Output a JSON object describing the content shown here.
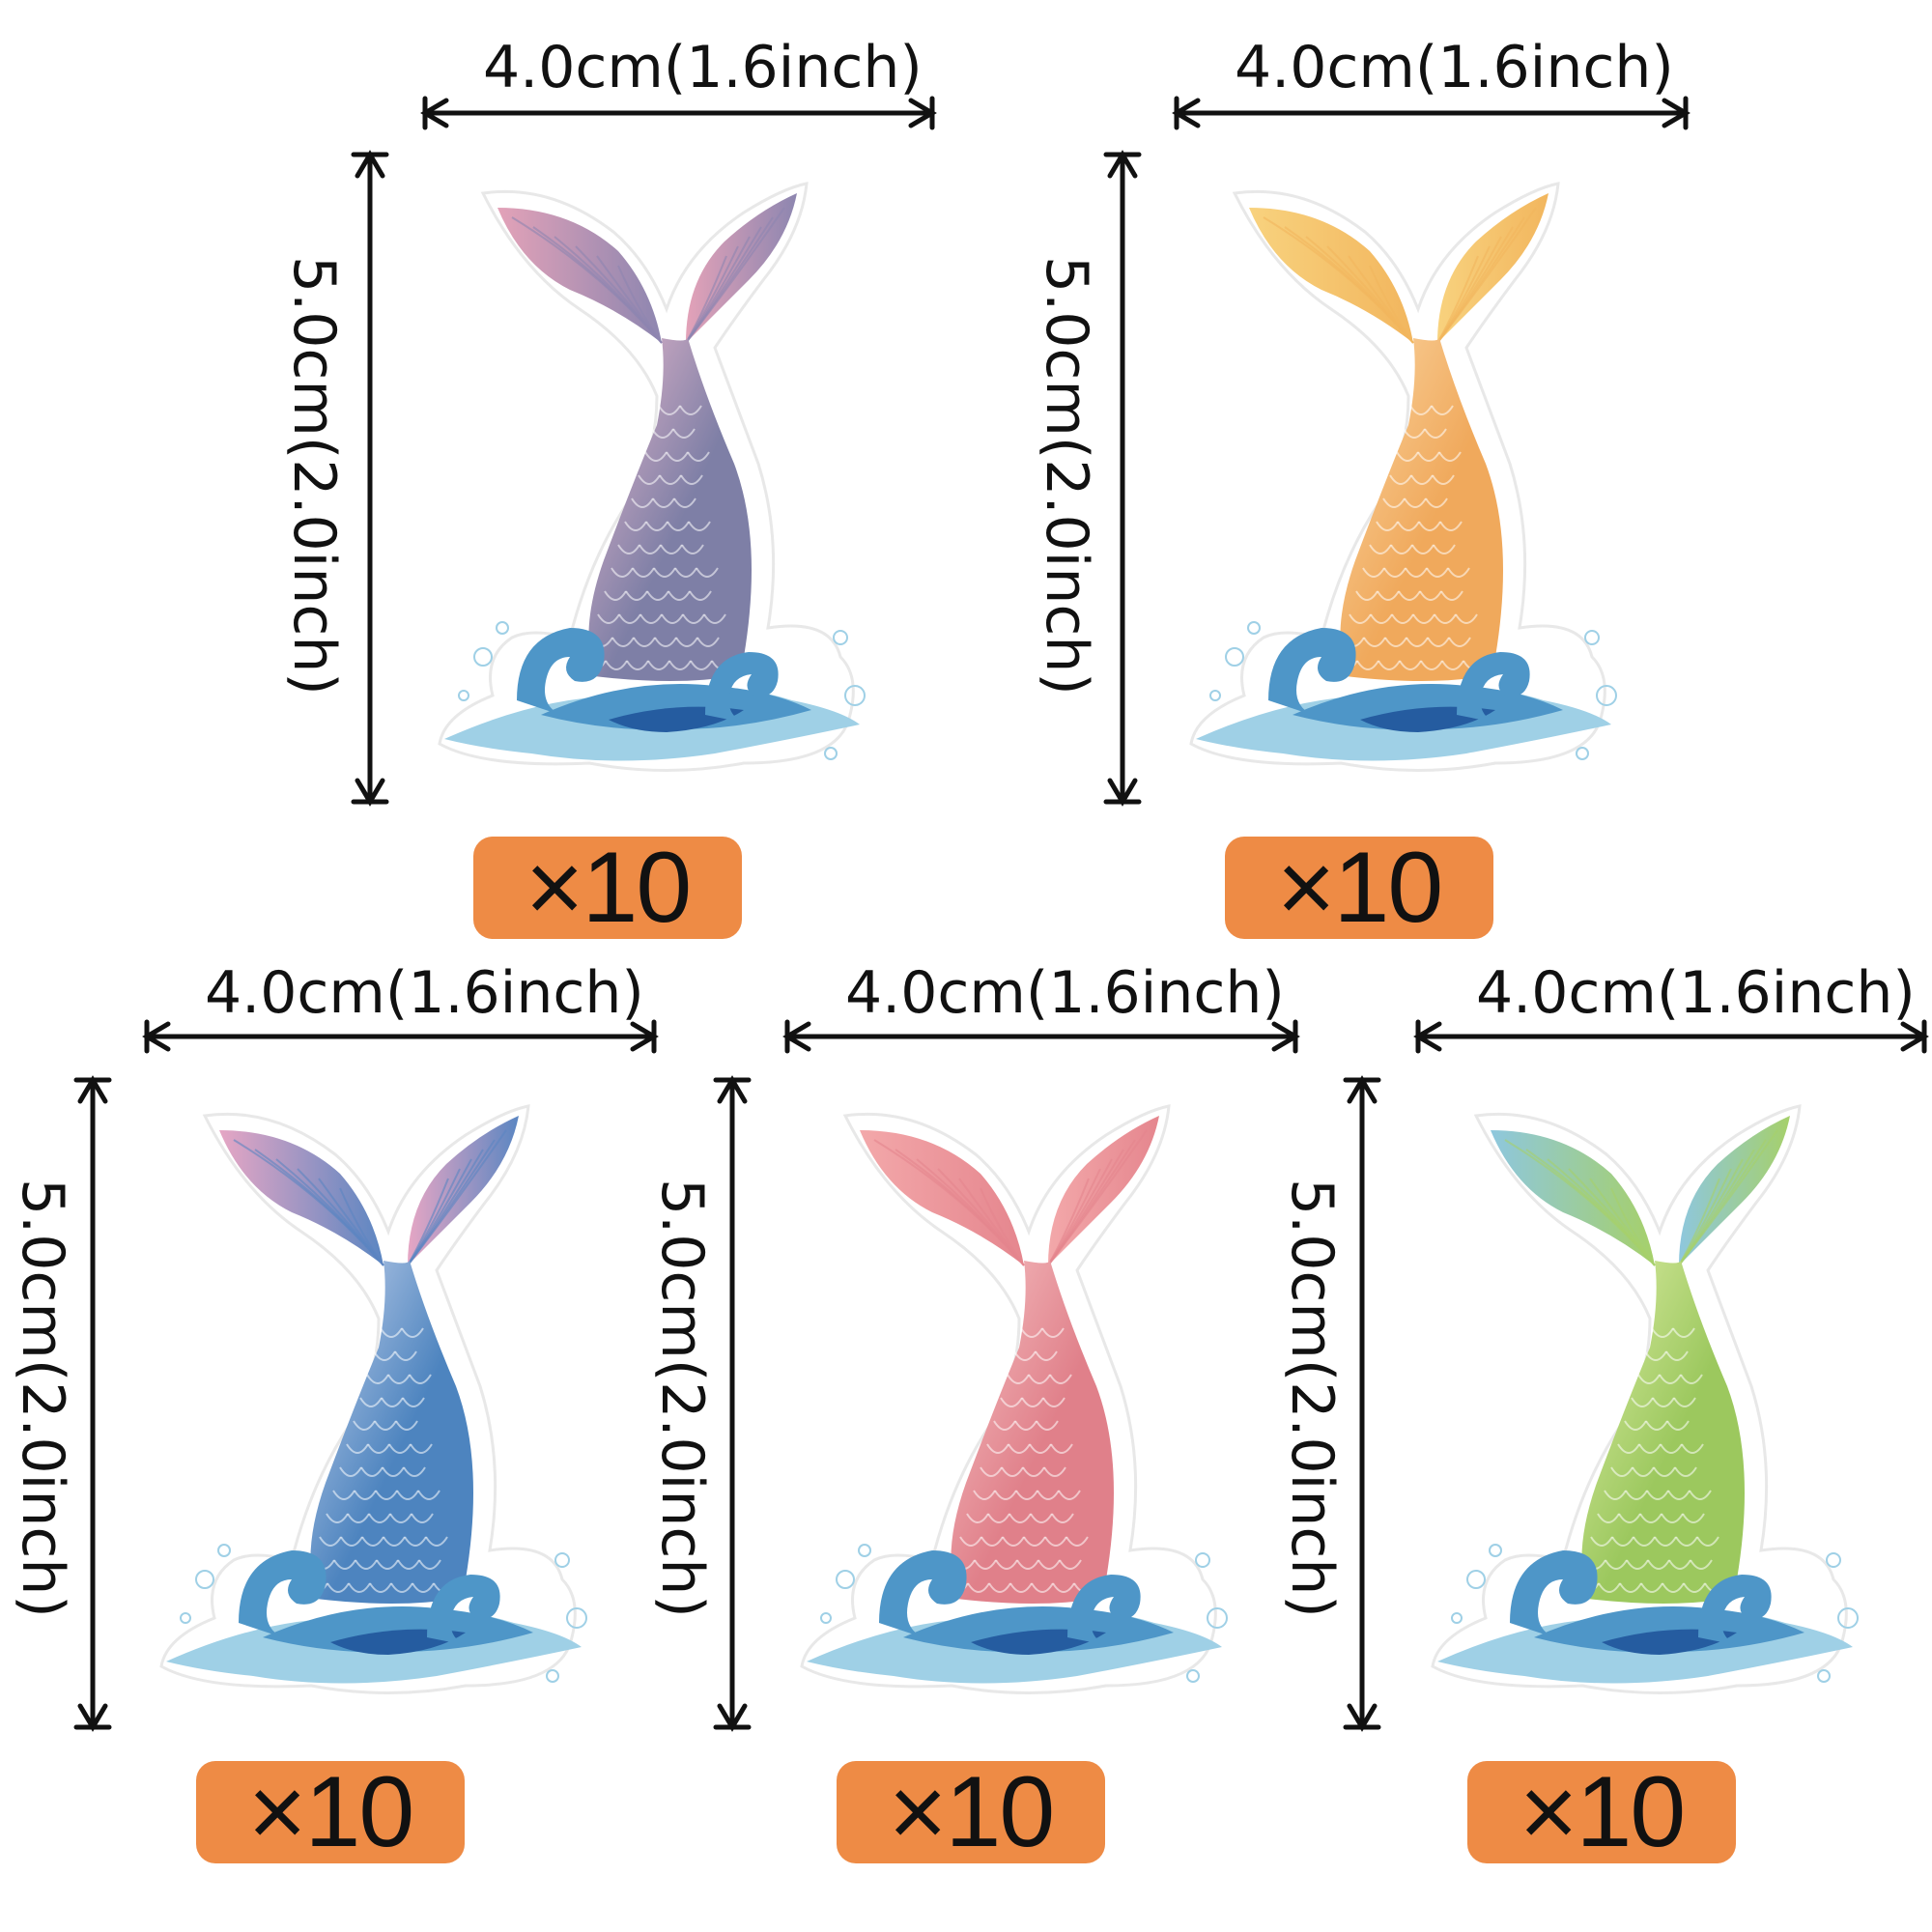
{
  "colors": {
    "badge": "#EE8B45",
    "wave_light": "#9FD0E6",
    "wave_mid": "#4E96C8",
    "wave_dark": "#255CA0"
  },
  "stickers": [
    {
      "id": "purple",
      "width_label": "4.0cm(1.6inch)",
      "height_label": "5.0cm(2.0inch)",
      "count_label": "×10",
      "tail_main": "#7E7FA6",
      "tail_light": "#E8B8CC",
      "fin": "#E3A2B8",
      "fin_tip": "#8D86B0"
    },
    {
      "id": "orange",
      "width_label": "4.0cm(1.6inch)",
      "height_label": "5.0cm(2.0inch)",
      "count_label": "×10",
      "tail_main": "#F0A95C",
      "tail_light": "#FAD6A3",
      "fin": "#F8D27E",
      "fin_tip": "#F2B65E"
    },
    {
      "id": "blue",
      "width_label": "4.0cm(1.6inch)",
      "height_label": "5.0cm(2.0inch)",
      "count_label": "×10",
      "tail_main": "#4D84BF",
      "tail_light": "#C6D3EC",
      "fin": "#E6A6C4",
      "fin_tip": "#5B86C2"
    },
    {
      "id": "pink",
      "width_label": "4.0cm(1.6inch)",
      "height_label": "5.0cm(2.0inch)",
      "count_label": "×10",
      "tail_main": "#E0808A",
      "tail_light": "#F6C3C4",
      "fin": "#F3A8AA",
      "fin_tip": "#E5868E"
    },
    {
      "id": "green",
      "width_label": "4.0cm(1.6inch)",
      "height_label": "5.0cm(2.0inch)",
      "count_label": "×10",
      "tail_main": "#9CC85E",
      "tail_light": "#DDEDA6",
      "fin": "#8EC7DE",
      "fin_tip": "#A6D06A"
    }
  ]
}
